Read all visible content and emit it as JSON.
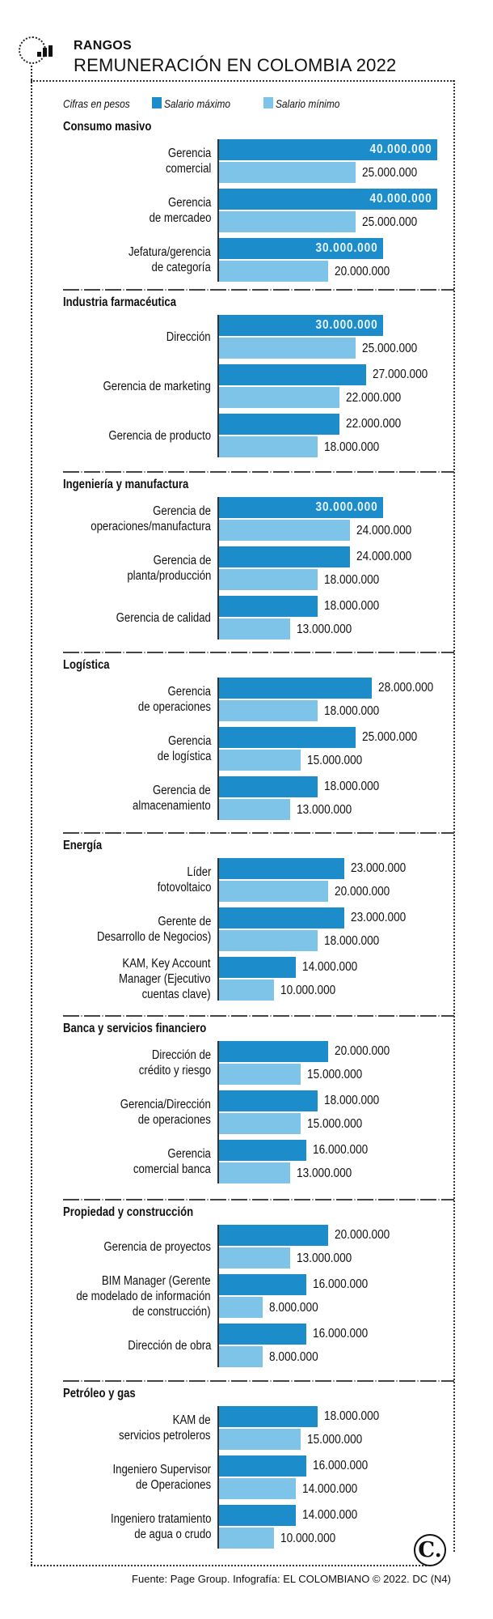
{
  "header": {
    "kicker": "RANGOS",
    "title": "REMUNERACIÓN EN COLOMBIA 2022",
    "icon": "bar-chart-icon"
  },
  "legend": {
    "units": "Cifras en pesos",
    "max_label": "Salario máximo",
    "min_label": "Salario mínimo",
    "max_color": "#1c8ccb",
    "min_color": "#7dc4e8"
  },
  "footer": {
    "source": "Fuente: Page Group. Infografía: EL COLOMBIANO © 2022. DC (N4)",
    "logo": "C."
  },
  "chart_data": {
    "type": "bar",
    "orientation": "horizontal",
    "title": "REMUNERACIÓN EN COLOMBIA 2022",
    "units": "Cifras en pesos",
    "series_names": [
      "Salario máximo",
      "Salario mínimo"
    ],
    "xlim": [
      0,
      40000000
    ],
    "grid": false,
    "legend": "top-left",
    "groups": [
      {
        "name": "Consumo masivo",
        "items": [
          {
            "label": [
              "Gerencia",
              "comercial"
            ],
            "max": 40000000,
            "min": 25000000,
            "max_text": "40.000.000",
            "min_text": "25.000.000"
          },
          {
            "label": [
              "Gerencia",
              "de mercadeo"
            ],
            "max": 40000000,
            "min": 25000000,
            "max_text": "40.000.000",
            "min_text": "25.000.000"
          },
          {
            "label": [
              "Jefatura/gerencia",
              "de categoría"
            ],
            "max": 30000000,
            "min": 20000000,
            "max_text": "30.000.000",
            "min_text": "20.000.000"
          }
        ]
      },
      {
        "name": "Industria farmacéutica",
        "items": [
          {
            "label": [
              "Dirección"
            ],
            "max": 30000000,
            "min": 25000000,
            "max_text": "30.000.000",
            "min_text": "25.000.000"
          },
          {
            "label": [
              "Gerencia de marketing"
            ],
            "max": 27000000,
            "min": 22000000,
            "max_text": "27.000.000",
            "min_text": "22.000.000"
          },
          {
            "label": [
              "Gerencia de producto"
            ],
            "max": 22000000,
            "min": 18000000,
            "max_text": "22.000.000",
            "min_text": "18.000.000"
          }
        ]
      },
      {
        "name": "Ingeniería y manufactura",
        "items": [
          {
            "label": [
              "Gerencia de",
              "operaciones/manufactura"
            ],
            "max": 30000000,
            "min": 24000000,
            "max_text": "30.000.000",
            "min_text": "24.000.000"
          },
          {
            "label": [
              "Gerencia de",
              "planta/producción"
            ],
            "max": 24000000,
            "min": 18000000,
            "max_text": "24.000.000",
            "min_text": "18.000.000"
          },
          {
            "label": [
              "Gerencia de calidad"
            ],
            "max": 18000000,
            "min": 13000000,
            "max_text": "18.000.000",
            "min_text": "13.000.000"
          }
        ]
      },
      {
        "name": "Logística",
        "items": [
          {
            "label": [
              "Gerencia",
              "de operaciones"
            ],
            "max": 28000000,
            "min": 18000000,
            "max_text": "28.000.000",
            "min_text": "18.000.000"
          },
          {
            "label": [
              "Gerencia",
              "de logística"
            ],
            "max": 25000000,
            "min": 15000000,
            "max_text": "25.000.000",
            "min_text": "15.000.000"
          },
          {
            "label": [
              "Gerencia de",
              "almacenamiento"
            ],
            "max": 18000000,
            "min": 13000000,
            "max_text": "18.000.000",
            "min_text": "13.000.000"
          }
        ]
      },
      {
        "name": "Energía",
        "items": [
          {
            "label": [
              "Líder",
              "fotovoltaico"
            ],
            "max": 23000000,
            "min": 20000000,
            "max_text": "23.000.000",
            "min_text": "20.000.000"
          },
          {
            "label": [
              "Gerente de",
              "Desarrollo de Negocios)"
            ],
            "max": 23000000,
            "min": 18000000,
            "max_text": "23.000.000",
            "min_text": "18.000.000"
          },
          {
            "label": [
              "KAM, Key Account",
              "Manager (Ejecutivo",
              "cuentas clave)"
            ],
            "max": 14000000,
            "min": 10000000,
            "max_text": "14.000.000",
            "min_text": "10.000.000"
          }
        ]
      },
      {
        "name": "Banca y servicios financiero",
        "items": [
          {
            "label": [
              "Dirección de",
              "crédito y riesgo"
            ],
            "max": 20000000,
            "min": 15000000,
            "max_text": "20.000.000",
            "min_text": "15.000.000"
          },
          {
            "label": [
              "Gerencia/Dirección",
              "de operaciones"
            ],
            "max": 18000000,
            "min": 15000000,
            "max_text": "18.000.000",
            "min_text": "15.000.000"
          },
          {
            "label": [
              "Gerencia",
              "comercial banca"
            ],
            "max": 16000000,
            "min": 13000000,
            "max_text": "16.000.000",
            "min_text": "13.000.000"
          }
        ]
      },
      {
        "name": "Propiedad y construcción",
        "items": [
          {
            "label": [
              "Gerencia de proyectos"
            ],
            "max": 20000000,
            "min": 13000000,
            "max_text": "20.000.000",
            "min_text": "13.000.000"
          },
          {
            "label": [
              "BIM Manager (Gerente",
              "de modelado de información",
              "de construcción)"
            ],
            "max": 16000000,
            "min": 8000000,
            "max_text": "16.000.000",
            "min_text": "8.000.000"
          },
          {
            "label": [
              "Dirección de obra"
            ],
            "max": 16000000,
            "min": 8000000,
            "max_text": "16.000.000",
            "min_text": "8.000.000"
          }
        ]
      },
      {
        "name": "Petróleo y gas",
        "items": [
          {
            "label": [
              "KAM de",
              "servicios petroleros"
            ],
            "max": 18000000,
            "min": 15000000,
            "max_text": "18.000.000",
            "min_text": "15.000.000"
          },
          {
            "label": [
              "Ingeniero Supervisor",
              "de Operaciones"
            ],
            "max": 16000000,
            "min": 14000000,
            "max_text": "16.000.000",
            "min_text": "14.000.000"
          },
          {
            "label": [
              "Ingeniero tratamiento",
              "de agua o crudo"
            ],
            "max": 14000000,
            "min": 10000000,
            "max_text": "14.000.000",
            "min_text": "10.000.000"
          }
        ]
      }
    ]
  }
}
